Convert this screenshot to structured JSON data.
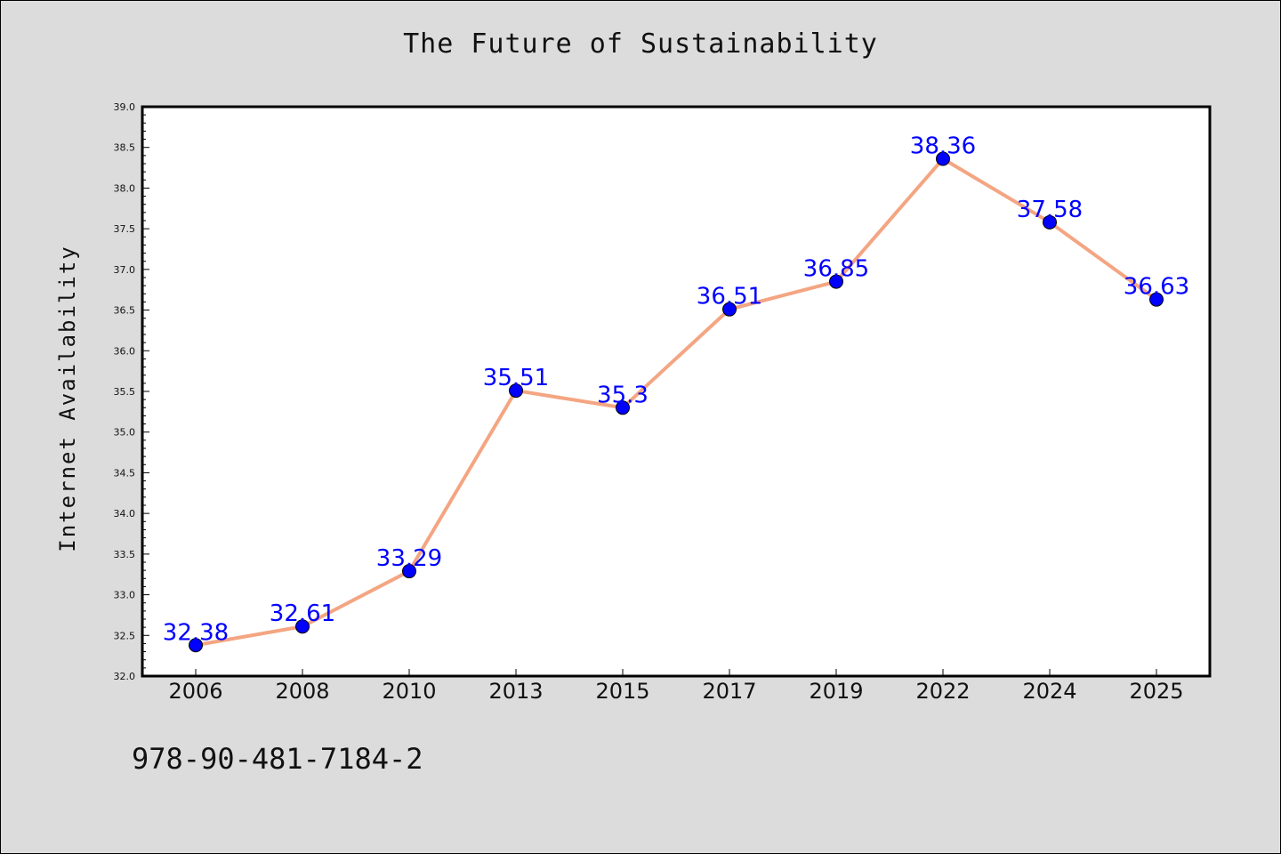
{
  "title": "The Future of Sustainability",
  "footer_text": "978-90-481-7184-2",
  "colors": {
    "background": "#dcdcdc",
    "plot_area": "#ffffff",
    "line": "#f4a582",
    "marker": "#0000ff",
    "data_label": "#0000ff"
  },
  "chart_data": {
    "type": "line",
    "title": "The Future of Sustainability",
    "xlabel": "",
    "ylabel": "Internet Availability",
    "categories": [
      "2006",
      "2008",
      "2010",
      "2013",
      "2015",
      "2017",
      "2019",
      "2022",
      "2024",
      "2025"
    ],
    "series": [
      {
        "values": [
          32.38,
          32.61,
          33.29,
          35.51,
          35.3,
          36.51,
          36.85,
          38.36,
          37.58,
          36.63
        ],
        "labels": [
          "32.38",
          "32.61",
          "33.29",
          "35.51",
          "35.3",
          "36.51",
          "36.85",
          "38.36",
          "37.58",
          "36.63"
        ]
      }
    ],
    "ylim": [
      32.0,
      39.0
    ],
    "yticks": [
      "32.0",
      "32.5",
      "33.0",
      "33.5",
      "34.0",
      "34.5",
      "35.0",
      "35.5",
      "36.0",
      "36.5",
      "37.0",
      "37.5",
      "38.0",
      "38.5",
      "39.0"
    ],
    "grid": false,
    "legend": "none"
  }
}
